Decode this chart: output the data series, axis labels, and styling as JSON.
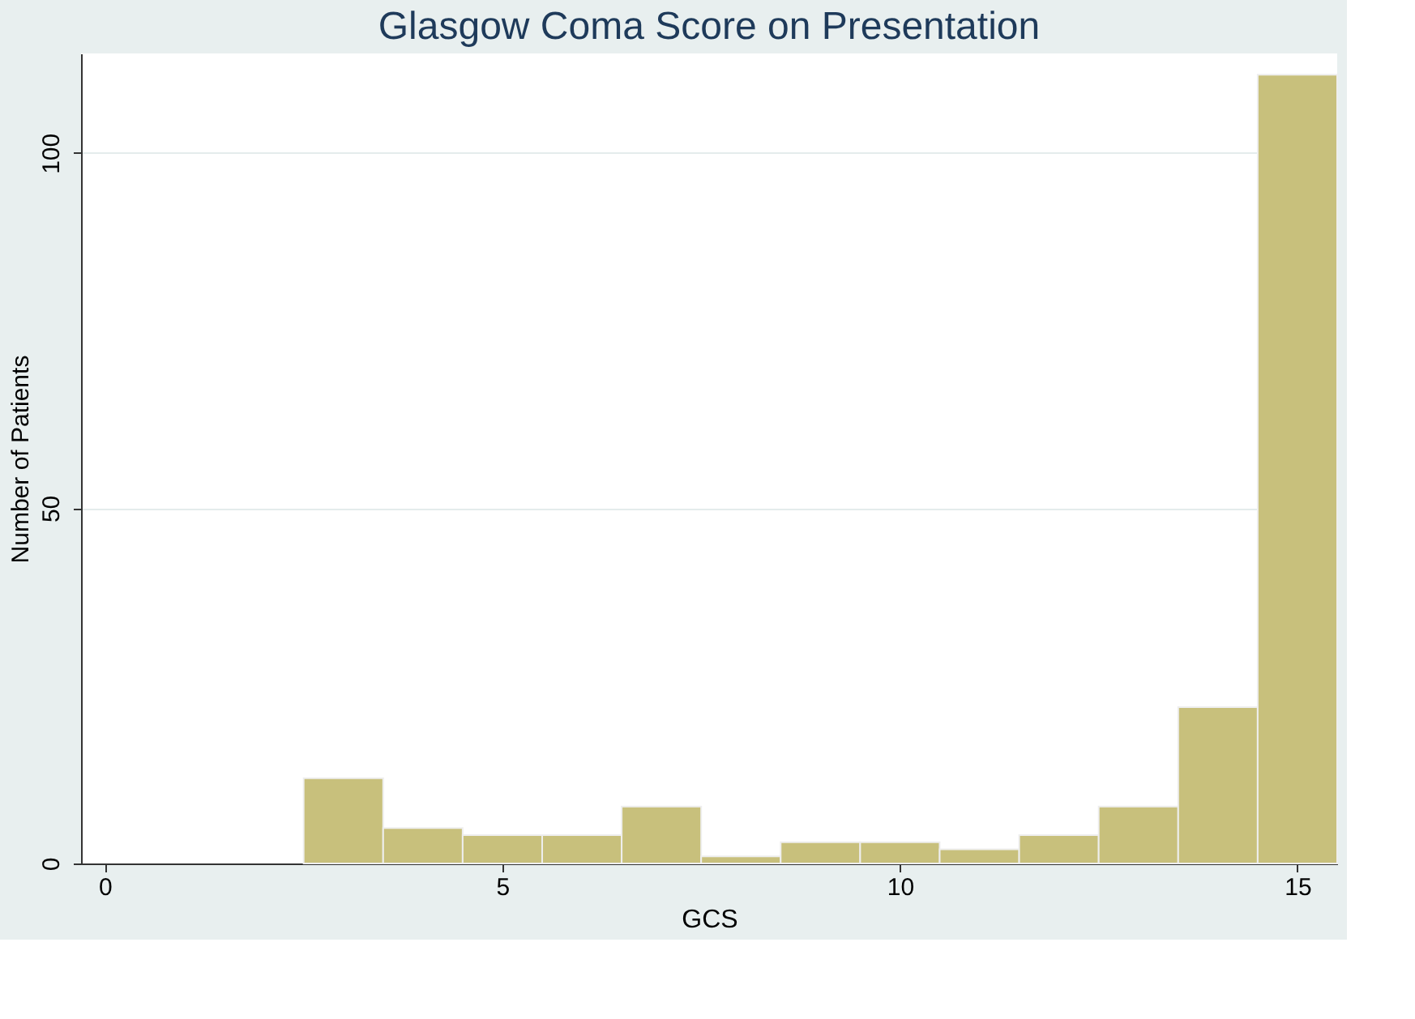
{
  "chart_data": {
    "type": "histogram",
    "title": "Glasgow Coma Score on Presentation",
    "xlabel": "GCS",
    "ylabel": "Number of Patients",
    "bins": [
      2.5,
      3.5,
      4.5,
      5.5,
      6.5,
      7.5,
      8.5,
      9.5,
      10.5,
      11.5,
      12.5,
      13.5,
      14.5,
      15.5
    ],
    "values": [
      12,
      5,
      4,
      4,
      8,
      1,
      3,
      3,
      2,
      4,
      8,
      22,
      111
    ],
    "color": "#c8c07c",
    "xlim": [
      -0.3,
      15.5
    ],
    "xticks": [
      0,
      5,
      10,
      15
    ],
    "ylim": [
      0,
      114
    ],
    "yticks": [
      0,
      50,
      100
    ],
    "grid": "y"
  }
}
